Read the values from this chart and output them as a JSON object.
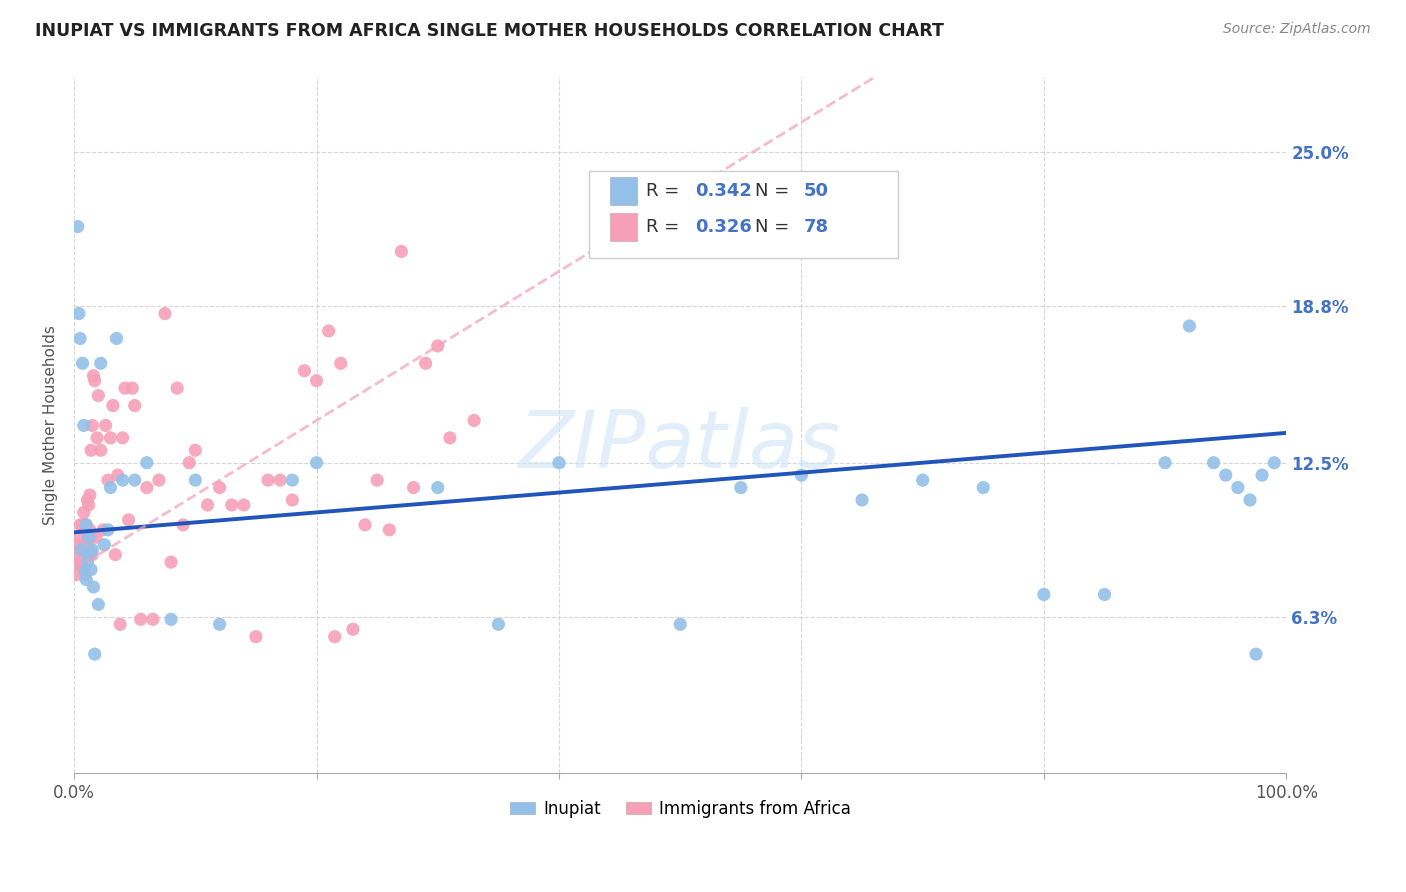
{
  "title": "INUPIAT VS IMMIGRANTS FROM AFRICA SINGLE MOTHER HOUSEHOLDS CORRELATION CHART",
  "source": "Source: ZipAtlas.com",
  "ylabel": "Single Mother Households",
  "ytick_labels": [
    "6.3%",
    "12.5%",
    "18.8%",
    "25.0%"
  ],
  "ytick_values": [
    0.063,
    0.125,
    0.188,
    0.25
  ],
  "inupiat_color": "#92c0e8",
  "africa_color": "#f5a0b8",
  "inupiat_line_color": "#2255bb",
  "africa_line_color": "#f0a0b8",
  "watermark_color": "#d0e4f5",
  "watermark_text": "ZIPatlas",
  "legend_R1": "0.342",
  "legend_N1": "50",
  "legend_R2": "0.326",
  "legend_N2": "78",
  "legend_text_color": "#333333",
  "legend_value_color": "#4472C4",
  "inupiat_x": [
    0.003,
    0.004,
    0.005,
    0.006,
    0.007,
    0.008,
    0.009,
    0.01,
    0.01,
    0.011,
    0.012,
    0.013,
    0.014,
    0.015,
    0.016,
    0.017,
    0.02,
    0.022,
    0.025,
    0.028,
    0.03,
    0.035,
    0.04,
    0.05,
    0.06,
    0.08,
    0.1,
    0.12,
    0.18,
    0.2,
    0.3,
    0.35,
    0.4,
    0.5,
    0.55,
    0.6,
    0.65,
    0.7,
    0.75,
    0.8,
    0.85,
    0.9,
    0.92,
    0.94,
    0.95,
    0.96,
    0.97,
    0.975,
    0.98,
    0.99
  ],
  "inupiat_y": [
    0.22,
    0.185,
    0.175,
    0.09,
    0.165,
    0.14,
    0.082,
    0.1,
    0.078,
    0.085,
    0.095,
    0.088,
    0.082,
    0.09,
    0.075,
    0.048,
    0.068,
    0.165,
    0.092,
    0.098,
    0.115,
    0.175,
    0.118,
    0.118,
    0.125,
    0.062,
    0.118,
    0.06,
    0.118,
    0.125,
    0.115,
    0.06,
    0.125,
    0.06,
    0.115,
    0.12,
    0.11,
    0.118,
    0.115,
    0.072,
    0.072,
    0.125,
    0.18,
    0.125,
    0.12,
    0.115,
    0.11,
    0.048,
    0.12,
    0.125
  ],
  "africa_x": [
    0.001,
    0.002,
    0.003,
    0.003,
    0.004,
    0.005,
    0.005,
    0.006,
    0.007,
    0.007,
    0.008,
    0.008,
    0.009,
    0.009,
    0.01,
    0.01,
    0.011,
    0.011,
    0.012,
    0.012,
    0.013,
    0.013,
    0.014,
    0.014,
    0.015,
    0.015,
    0.016,
    0.017,
    0.018,
    0.019,
    0.02,
    0.022,
    0.024,
    0.026,
    0.028,
    0.03,
    0.032,
    0.034,
    0.036,
    0.038,
    0.04,
    0.042,
    0.045,
    0.048,
    0.05,
    0.055,
    0.06,
    0.065,
    0.07,
    0.075,
    0.08,
    0.085,
    0.09,
    0.095,
    0.1,
    0.11,
    0.12,
    0.13,
    0.14,
    0.15,
    0.16,
    0.17,
    0.18,
    0.19,
    0.2,
    0.21,
    0.215,
    0.22,
    0.23,
    0.24,
    0.25,
    0.26,
    0.27,
    0.28,
    0.29,
    0.3,
    0.31,
    0.33
  ],
  "africa_y": [
    0.088,
    0.08,
    0.092,
    0.085,
    0.09,
    0.1,
    0.095,
    0.085,
    0.1,
    0.092,
    0.105,
    0.088,
    0.098,
    0.08,
    0.1,
    0.092,
    0.11,
    0.095,
    0.108,
    0.09,
    0.112,
    0.098,
    0.13,
    0.095,
    0.14,
    0.088,
    0.16,
    0.158,
    0.095,
    0.135,
    0.152,
    0.13,
    0.098,
    0.14,
    0.118,
    0.135,
    0.148,
    0.088,
    0.12,
    0.06,
    0.135,
    0.155,
    0.102,
    0.155,
    0.148,
    0.062,
    0.115,
    0.062,
    0.118,
    0.185,
    0.085,
    0.155,
    0.1,
    0.125,
    0.13,
    0.108,
    0.115,
    0.108,
    0.108,
    0.055,
    0.118,
    0.118,
    0.11,
    0.162,
    0.158,
    0.178,
    0.055,
    0.165,
    0.058,
    0.1,
    0.118,
    0.098,
    0.21,
    0.115,
    0.165,
    0.172,
    0.135,
    0.142
  ],
  "xmin": 0.0,
  "xmax": 1.0,
  "ymin": 0.0,
  "ymax": 0.28,
  "inupiat_slope": 0.04,
  "inupiat_intercept": 0.097,
  "africa_slope": 0.3,
  "africa_intercept": 0.082,
  "africa_line_xmax": 0.35
}
